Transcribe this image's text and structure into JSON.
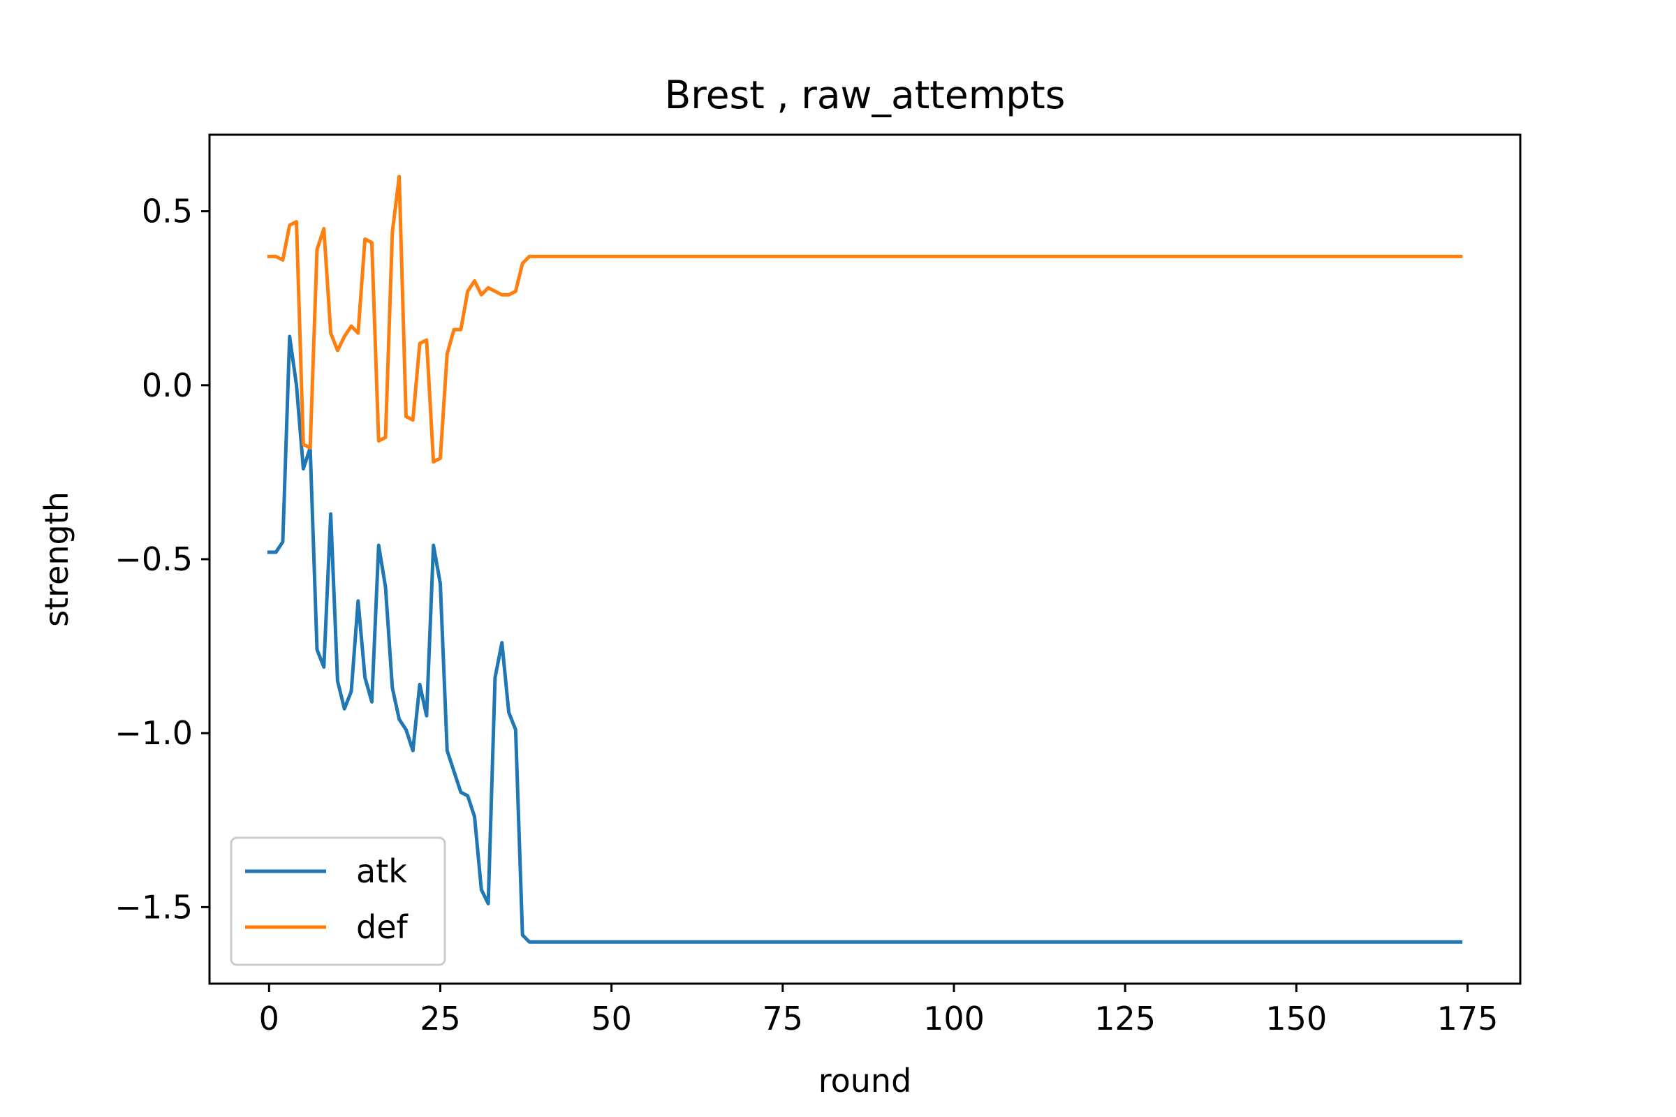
{
  "chart_data": {
    "type": "line",
    "title": "Brest , raw_attempts",
    "xlabel": "round",
    "ylabel": "strength",
    "xlim": [
      -8.7,
      182.7
    ],
    "ylim": [
      -1.72,
      0.72
    ],
    "x_ticks": [
      0,
      25,
      50,
      75,
      100,
      125,
      150,
      175
    ],
    "y_ticks": [
      -1.5,
      -1.0,
      -0.5,
      0.0,
      0.5
    ],
    "x_tick_labels": [
      "0",
      "25",
      "50",
      "75",
      "100",
      "125",
      "150",
      "175"
    ],
    "y_tick_labels": [
      "−1.5",
      "−1.0",
      "−0.5",
      "0.0",
      "0.5"
    ],
    "grid": false,
    "legend_position": "lower-left",
    "series": [
      {
        "name": "atk",
        "color": "#1f77b4",
        "x": [
          0,
          1,
          2,
          3,
          4,
          5,
          6,
          7,
          8,
          9,
          10,
          11,
          12,
          13,
          14,
          15,
          16,
          17,
          18,
          19,
          20,
          21,
          22,
          23,
          24,
          25,
          26,
          27,
          28,
          29,
          30,
          31,
          32,
          33,
          34,
          35,
          36,
          37,
          38,
          174
        ],
        "y": [
          -0.48,
          -0.48,
          -0.45,
          0.14,
          0.0,
          -0.24,
          -0.18,
          -0.76,
          -0.81,
          -0.37,
          -0.85,
          -0.93,
          -0.88,
          -0.62,
          -0.84,
          -0.91,
          -0.46,
          -0.58,
          -0.87,
          -0.96,
          -0.99,
          -1.05,
          -0.86,
          -0.95,
          -0.46,
          -0.57,
          -1.05,
          -1.11,
          -1.17,
          -1.18,
          -1.24,
          -1.45,
          -1.49,
          -0.84,
          -0.74,
          -0.94,
          -0.99,
          -1.58,
          -1.6,
          -1.6
        ]
      },
      {
        "name": "def",
        "color": "#ff7f0e",
        "x": [
          0,
          1,
          2,
          3,
          4,
          5,
          6,
          7,
          8,
          9,
          10,
          11,
          12,
          13,
          14,
          15,
          16,
          17,
          18,
          19,
          20,
          21,
          22,
          23,
          24,
          25,
          26,
          27,
          28,
          29,
          30,
          31,
          32,
          33,
          34,
          35,
          36,
          37,
          38,
          174
        ],
        "y": [
          0.37,
          0.37,
          0.36,
          0.46,
          0.47,
          -0.17,
          -0.18,
          0.39,
          0.45,
          0.15,
          0.1,
          0.14,
          0.17,
          0.15,
          0.42,
          0.41,
          -0.16,
          -0.15,
          0.44,
          0.6,
          -0.09,
          -0.1,
          0.12,
          0.13,
          -0.22,
          -0.21,
          0.09,
          0.16,
          0.16,
          0.27,
          0.3,
          0.26,
          0.28,
          0.27,
          0.26,
          0.26,
          0.27,
          0.35,
          0.37,
          0.37
        ]
      }
    ]
  }
}
